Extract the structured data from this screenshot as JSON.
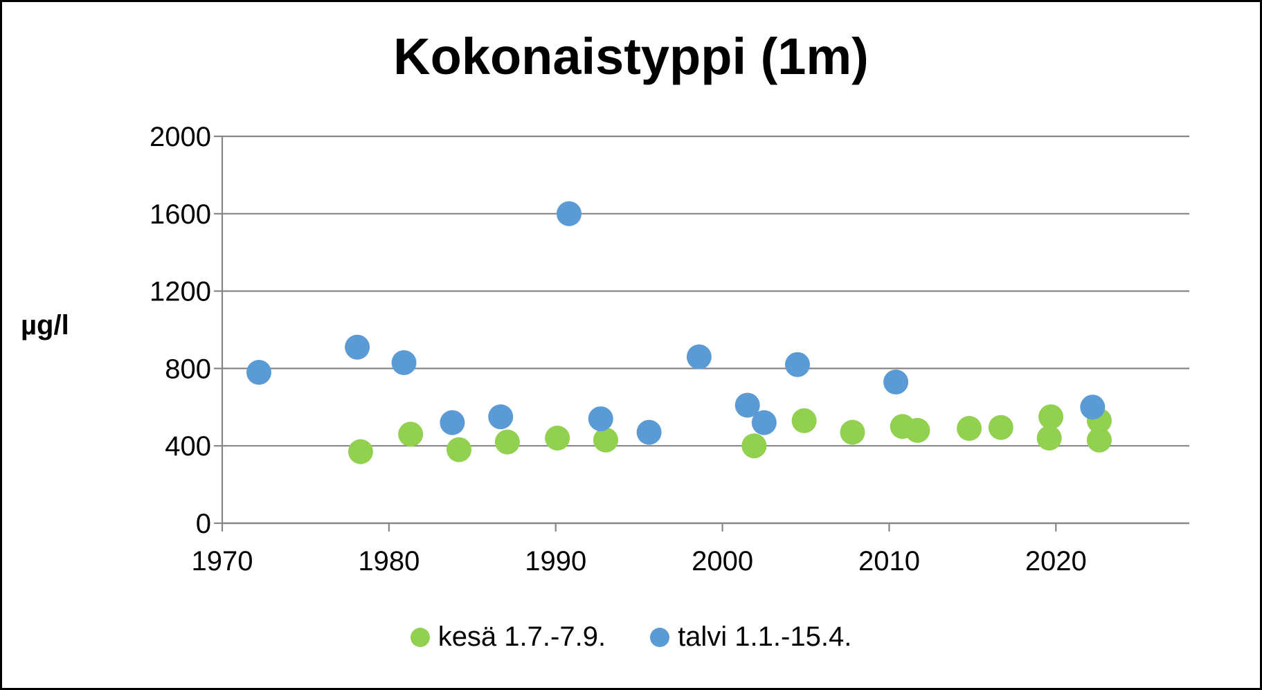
{
  "chart_data": {
    "type": "scatter",
    "title": "Kokonaistyppi (1m)",
    "ylabel": "µg/l",
    "xlabel": "",
    "xlim": [
      1970,
      2028
    ],
    "ylim": [
      0,
      2000
    ],
    "xticks": [
      1970,
      1980,
      1990,
      2000,
      2010,
      2020
    ],
    "yticks": [
      0,
      400,
      800,
      1200,
      1600,
      2000
    ],
    "grid": "horizontal",
    "legend_position": "bottom",
    "series": [
      {
        "name": "kesä 1.7.-7.9.",
        "color": "#92d050",
        "points": [
          [
            1978.3,
            370
          ],
          [
            1981.3,
            460
          ],
          [
            1984.2,
            380
          ],
          [
            1987.1,
            420
          ],
          [
            1990.1,
            440
          ],
          [
            1993.0,
            430
          ],
          [
            2001.9,
            400
          ],
          [
            2004.9,
            530
          ],
          [
            2007.8,
            470
          ],
          [
            2010.8,
            500
          ],
          [
            2011.7,
            480
          ],
          [
            2014.8,
            490
          ],
          [
            2016.7,
            495
          ],
          [
            2019.7,
            550
          ],
          [
            2019.6,
            440
          ],
          [
            2022.6,
            530
          ],
          [
            2022.6,
            430
          ]
        ]
      },
      {
        "name": "talvi 1.1.-15.4.",
        "color": "#5b9bd5",
        "points": [
          [
            1972.2,
            780
          ],
          [
            1978.1,
            910
          ],
          [
            1980.9,
            830
          ],
          [
            1983.8,
            520
          ],
          [
            1986.7,
            550
          ],
          [
            1990.8,
            1600
          ],
          [
            1992.7,
            540
          ],
          [
            1995.6,
            470
          ],
          [
            1998.6,
            860
          ],
          [
            2001.5,
            610
          ],
          [
            2002.5,
            520
          ],
          [
            2004.5,
            820
          ],
          [
            2010.4,
            730
          ],
          [
            2022.2,
            600
          ]
        ]
      }
    ]
  }
}
